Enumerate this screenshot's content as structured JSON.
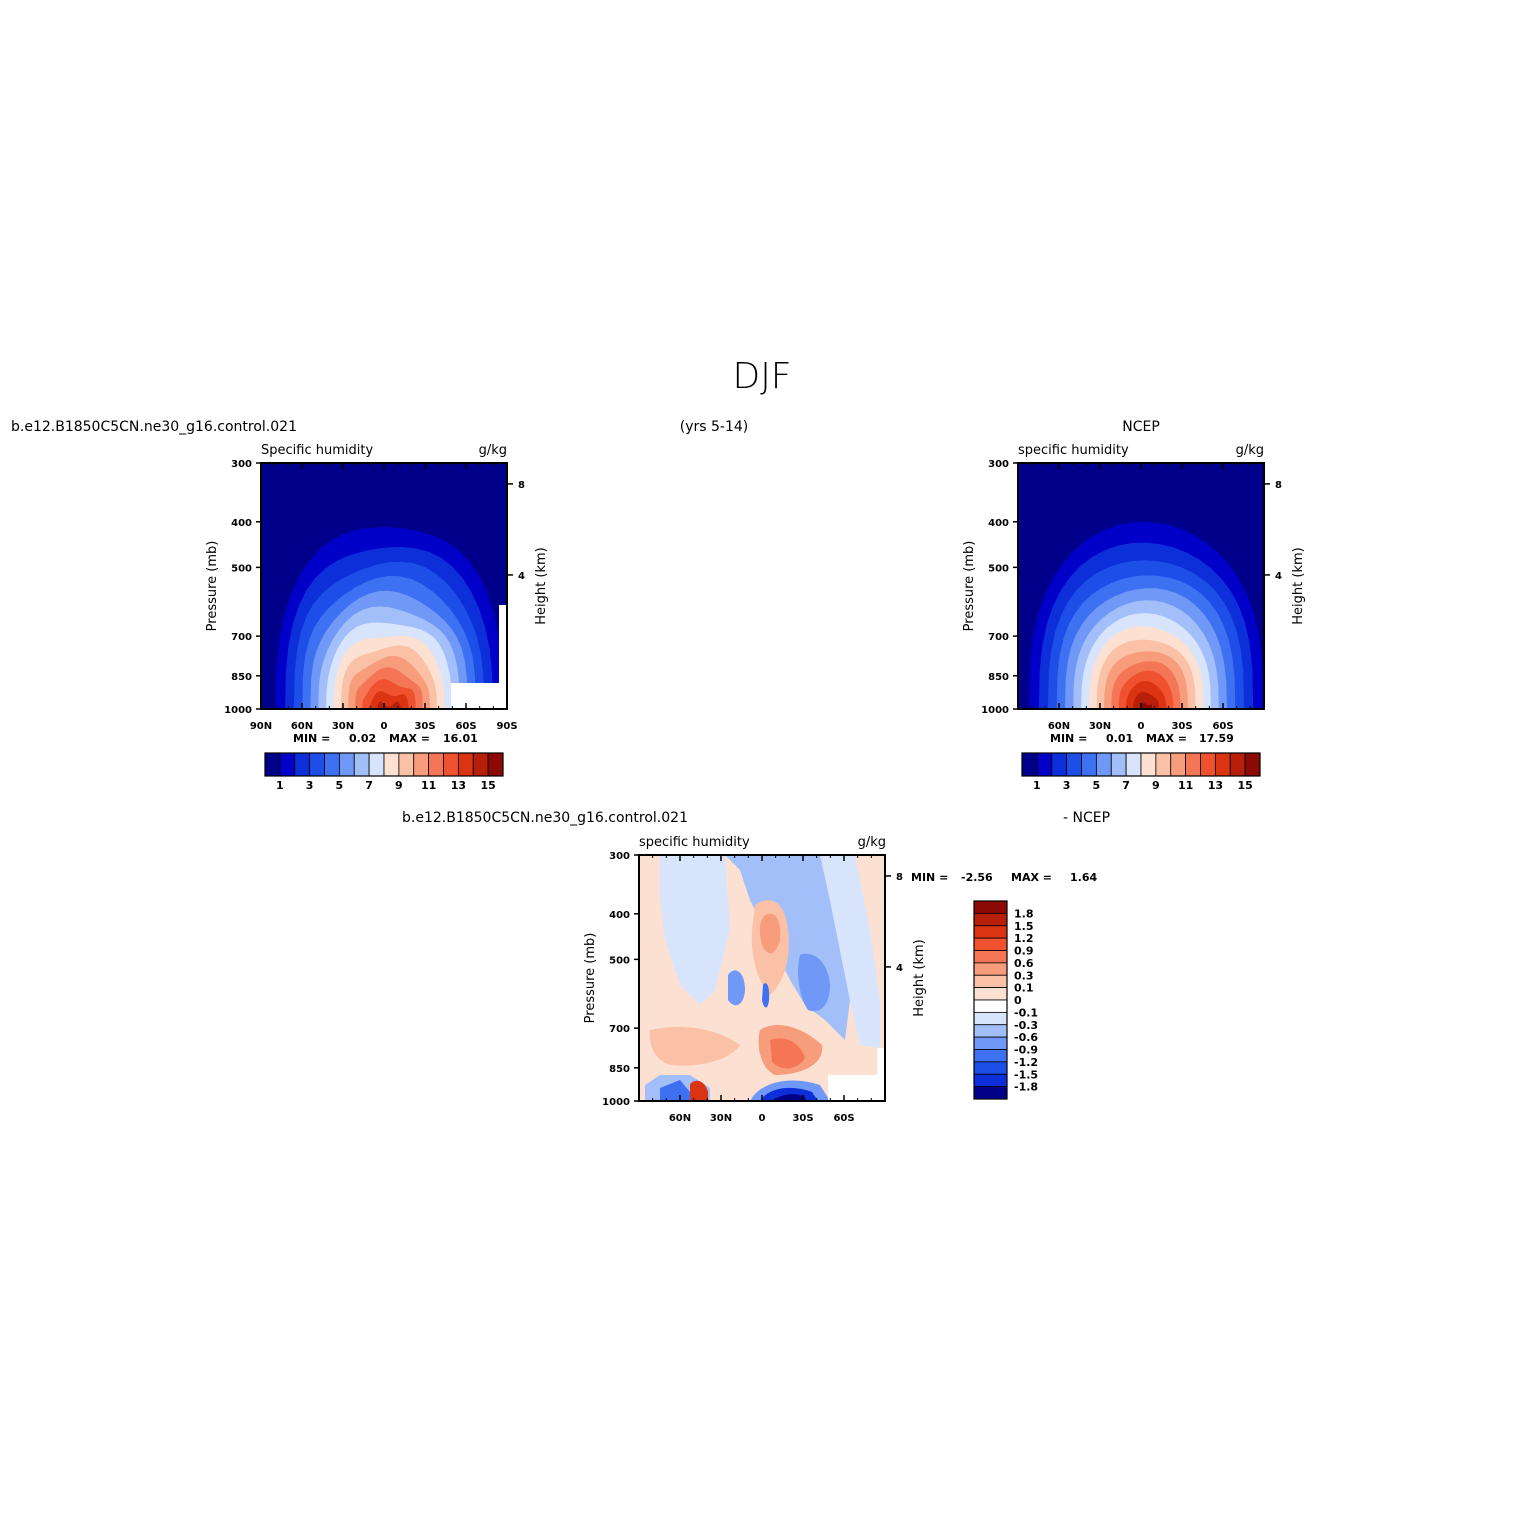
{
  "title": "DJF",
  "header": {
    "left_case": "b.e12.B1850C5CN.ne30_g16.control.021",
    "years": "(yrs 5-14)",
    "right_obs": "NCEP",
    "diff_case": "b.e12.B1850C5CN.ne30_g16.control.021",
    "diff_obs": "- NCEP"
  },
  "chart_data": [
    {
      "type": "contour",
      "panel": "model",
      "title_left": "Specific humidity",
      "title_right": "g/kg",
      "ylabel": "Pressure (mb)",
      "ylabel_right": "Height (km)",
      "pressure_ticks": [
        "300",
        "400",
        "500",
        "700",
        "850",
        "1000"
      ],
      "height_ticks": [
        "8",
        "4"
      ],
      "lat_ticks": [
        "90N",
        "60N",
        "30N",
        "0",
        "30S",
        "60S",
        "90S"
      ],
      "stats": {
        "min_label": "MIN =",
        "min": "0.02",
        "max_label": "MAX =",
        "max": "16.01"
      },
      "colorbar_labels": [
        "1",
        "3",
        "5",
        "7",
        "9",
        "11",
        "13",
        "15"
      ],
      "peak_value": 16.01
    },
    {
      "type": "contour",
      "panel": "obs",
      "title_left": "specific humidity",
      "title_right": "g/kg",
      "ylabel": "Pressure (mb)",
      "ylabel_right": "Height (km)",
      "pressure_ticks": [
        "300",
        "400",
        "500",
        "700",
        "850",
        "1000"
      ],
      "height_ticks": [
        "8",
        "4"
      ],
      "lat_ticks": [
        "60N",
        "30N",
        "0",
        "30S",
        "60S"
      ],
      "stats": {
        "min_label": "MIN =",
        "min": "0.01",
        "max_label": "MAX =",
        "max": "17.59"
      },
      "colorbar_labels": [
        "1",
        "3",
        "5",
        "7",
        "9",
        "11",
        "13",
        "15"
      ],
      "peak_value": 17.59
    },
    {
      "type": "contour",
      "panel": "difference",
      "title_left": "specific humidity",
      "title_right": "g/kg",
      "ylabel": "Pressure (mb)",
      "ylabel_right": "Height (km)",
      "pressure_ticks": [
        "300",
        "400",
        "500",
        "700",
        "850",
        "1000"
      ],
      "height_ticks": [
        "8",
        "4"
      ],
      "lat_ticks": [
        "60N",
        "30N",
        "0",
        "30S",
        "60S"
      ],
      "stats": {
        "min_label": "MIN =",
        "min": "-2.56",
        "max_label": "MAX =",
        "max": "1.64"
      },
      "colorbar_labels": [
        "1.8",
        "1.5",
        "1.2",
        "0.9",
        "0.6",
        "0.3",
        "0.1",
        "0",
        "-0.1",
        "-0.3",
        "-0.6",
        "-0.9",
        "-1.2",
        "-1.5",
        "-1.8"
      ]
    }
  ],
  "colors": {
    "sequential": [
      "#00008B",
      "#0000C8",
      "#0D2FD9",
      "#1D4FE8",
      "#3E70F2",
      "#6F98F7",
      "#A2BFFA",
      "#D7E4FC",
      "#FCE1D2",
      "#FBC1A6",
      "#F89D7C",
      "#F57656",
      "#F0512F",
      "#DA3413",
      "#B81F09",
      "#8B0A06"
    ],
    "diverging": [
      "#8B0A06",
      "#B81F09",
      "#DA3413",
      "#F0512F",
      "#F57656",
      "#F89D7C",
      "#FBC1A6",
      "#FCE1D2",
      "#FFFFFF",
      "#D7E4FC",
      "#A2BFFA",
      "#6F98F7",
      "#3E70F2",
      "#1D4FE8",
      "#0D2FD9",
      "#00008B"
    ]
  }
}
